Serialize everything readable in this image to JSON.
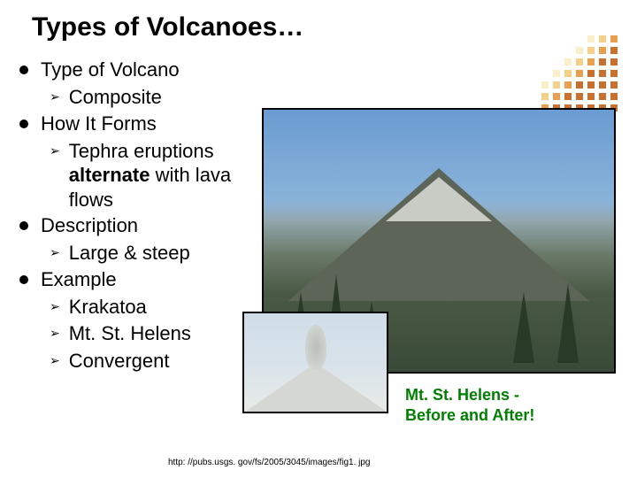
{
  "title": "Types of Volcanoes…",
  "sections": [
    {
      "heading": "Type of Volcano",
      "items": [
        {
          "text": "Composite"
        }
      ]
    },
    {
      "heading": "How It Forms",
      "items": [
        {
          "prefix": "Tephra eruptions ",
          "bold": "alternate",
          "suffix": " with lava flows"
        }
      ]
    },
    {
      "heading": "Description",
      "items": [
        {
          "text": "Large & steep"
        }
      ]
    },
    {
      "heading": "Example",
      "items": [
        {
          "text": "Krakatoa"
        },
        {
          "text": "Mt. St. Helens"
        },
        {
          "text": "Convergent"
        }
      ]
    }
  ],
  "caption_green_line1": "Mt. St. Helens -",
  "caption_green_line2": "Before and After!",
  "caption_url": "http: //pubs.usgs. gov/fs/2005/3045/images/fig1. jpg",
  "main_image": {
    "description": "volcano-photo-before",
    "colors": {
      "sky": "#6a9bd1",
      "mountain": "#5d6458",
      "snow": "#c8ccc5",
      "forest": "#2a3a28"
    }
  },
  "small_image": {
    "description": "volcano-photo-after-eruption",
    "colors": {
      "sky": "#d0dde8",
      "mountain": "#d5d8d2",
      "plume": "#b8beb8"
    }
  },
  "decoration": {
    "type": "dot-grid",
    "palette": [
      "#c87030",
      "#e8a050",
      "#f5d088",
      "#fbeecb"
    ]
  }
}
